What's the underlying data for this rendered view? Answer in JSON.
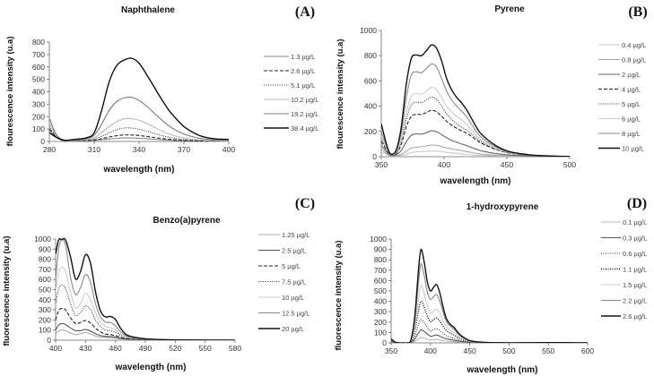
{
  "chart_data": [
    {
      "type": "line",
      "panel_label": "(A)",
      "title": "Naphthalene",
      "xlabel": "wavelength (nm)",
      "ylabel": "flourescence intensity (u.a)",
      "xlim": [
        280,
        400
      ],
      "ylim": [
        0,
        800
      ],
      "xticks": [
        280,
        310,
        340,
        370,
        400
      ],
      "yticks": [
        0,
        100,
        200,
        300,
        400,
        500,
        600,
        700,
        800
      ],
      "grid": false,
      "legend_position": "right",
      "x": [
        280,
        285,
        290,
        295,
        300,
        305,
        310,
        315,
        320,
        325,
        330,
        335,
        340,
        345,
        350,
        355,
        360,
        365,
        370,
        375,
        380,
        385,
        390,
        395,
        400
      ],
      "series": [
        {
          "name": "1.3 µg/L",
          "style": "solid",
          "color": "#888888",
          "values": [
            90,
            30,
            5,
            2,
            3,
            5,
            8,
            14,
            20,
            25,
            28,
            28,
            26,
            22,
            18,
            14,
            10,
            7,
            5,
            3,
            2,
            2,
            1,
            1,
            1
          ]
        },
        {
          "name": "2.6 µg/L",
          "style": "dashed",
          "color": "#222222",
          "values": [
            100,
            32,
            6,
            3,
            4,
            7,
            12,
            22,
            35,
            46,
            52,
            52,
            48,
            40,
            32,
            24,
            17,
            12,
            8,
            6,
            4,
            3,
            2,
            2,
            2
          ]
        },
        {
          "name": "5.1 µg/L",
          "style": "dotted",
          "color": "#333333",
          "values": [
            120,
            35,
            7,
            4,
            6,
            10,
            20,
            42,
            70,
            95,
            108,
            108,
            98,
            82,
            65,
            48,
            34,
            24,
            16,
            11,
            8,
            6,
            4,
            3,
            3
          ]
        },
        {
          "name": "10.2 µg/L",
          "style": "solid",
          "color": "#bbbbbb",
          "values": [
            150,
            40,
            8,
            5,
            8,
            14,
            30,
            70,
            120,
            160,
            182,
            183,
            170,
            145,
            115,
            85,
            60,
            42,
            28,
            19,
            13,
            9,
            7,
            5,
            4
          ]
        },
        {
          "name": "19.2 µg/L",
          "style": "solid",
          "color": "#777777",
          "values": [
            185,
            50,
            10,
            8,
            12,
            22,
            50,
            140,
            250,
            320,
            350,
            355,
            330,
            285,
            230,
            175,
            125,
            88,
            60,
            40,
            27,
            19,
            14,
            11,
            10
          ]
        },
        {
          "name": "38.4 µg/L",
          "style": "solid",
          "color": "#111111",
          "values": [
            70,
            30,
            10,
            14,
            20,
            30,
            70,
            250,
            480,
            610,
            655,
            670,
            630,
            540,
            440,
            340,
            250,
            180,
            120,
            80,
            50,
            32,
            22,
            18,
            16
          ]
        }
      ]
    },
    {
      "type": "line",
      "panel_label": "(B)",
      "title": "Pyrene",
      "xlabel": "wavelength (nm)",
      "ylabel": "flourescence intensity (u.a)",
      "xlim": [
        350,
        500
      ],
      "ylim": [
        0,
        1000
      ],
      "xticks": [
        350,
        400,
        450,
        500
      ],
      "yticks": [
        0,
        200,
        400,
        600,
        800,
        1000
      ],
      "grid": false,
      "legend_position": "right",
      "x": [
        350,
        355,
        358,
        362,
        366,
        370,
        374,
        378,
        382,
        386,
        390,
        394,
        398,
        402,
        406,
        410,
        414,
        418,
        422,
        426,
        430,
        440,
        450,
        460,
        470,
        480,
        490,
        500
      ],
      "series": [
        {
          "name": "0.4 µg/L",
          "style": "solid",
          "color": "#c8c8c8",
          "values": [
            40,
            15,
            5,
            5,
            10,
            20,
            32,
            38,
            40,
            42,
            44,
            43,
            40,
            35,
            30,
            26,
            22,
            18,
            15,
            12,
            10,
            6,
            4,
            3,
            2,
            1,
            1,
            0
          ]
        },
        {
          "name": "0.8 µg/L",
          "style": "solid",
          "color": "#aaaaaa",
          "values": [
            60,
            20,
            8,
            8,
            20,
            45,
            68,
            75,
            78,
            85,
            92,
            90,
            80,
            70,
            62,
            55,
            48,
            40,
            32,
            26,
            20,
            12,
            8,
            5,
            3,
            2,
            1,
            0
          ]
        },
        {
          "name": "2 µg/L",
          "style": "solid",
          "color": "#666666",
          "values": [
            90,
            30,
            10,
            15,
            50,
            120,
            170,
            180,
            178,
            190,
            205,
            198,
            175,
            150,
            130,
            115,
            100,
            88,
            72,
            58,
            45,
            26,
            15,
            9,
            5,
            3,
            2,
            1
          ]
        },
        {
          "name": "4 µg/L",
          "style": "dashed",
          "color": "#222222",
          "values": [
            120,
            40,
            12,
            25,
            100,
            240,
            320,
            335,
            335,
            350,
            368,
            355,
            320,
            280,
            250,
            225,
            205,
            185,
            160,
            130,
            105,
            62,
            32,
            18,
            10,
            5,
            3,
            2
          ]
        },
        {
          "name": "5 µg/L",
          "style": "dotted",
          "color": "#333333",
          "values": [
            140,
            45,
            14,
            30,
            120,
            300,
            410,
            430,
            428,
            450,
            472,
            455,
            400,
            340,
            295,
            260,
            235,
            210,
            180,
            145,
            115,
            65,
            33,
            18,
            10,
            5,
            3,
            2
          ]
        },
        {
          "name": "6 µg/L",
          "style": "solid",
          "color": "#cccccc",
          "values": [
            160,
            50,
            15,
            35,
            140,
            350,
            480,
            500,
            495,
            520,
            550,
            530,
            470,
            400,
            355,
            320,
            290,
            255,
            210,
            165,
            128,
            70,
            36,
            20,
            11,
            6,
            3,
            2
          ]
        },
        {
          "name": "8 µg/L",
          "style": "solid",
          "color": "#888888",
          "values": [
            200,
            60,
            18,
            45,
            190,
            470,
            650,
            672,
            665,
            700,
            735,
            710,
            620,
            520,
            450,
            400,
            360,
            315,
            255,
            195,
            150,
            82,
            40,
            22,
            12,
            6,
            3,
            2
          ]
        },
        {
          "name": "10 µg/L",
          "style": "solid",
          "color": "#111111",
          "values": [
            260,
            70,
            20,
            55,
            240,
            580,
            780,
            805,
            800,
            840,
            885,
            860,
            760,
            620,
            530,
            470,
            425,
            370,
            300,
            230,
            175,
            95,
            46,
            25,
            13,
            7,
            4,
            2
          ]
        }
      ]
    },
    {
      "type": "line",
      "panel_label": "(C)",
      "title": "Benzo(a)pyrene",
      "xlabel": "wavelength (nm)",
      "ylabel": "fluorescence intensity (u.a)",
      "xlim": [
        400,
        580
      ],
      "ylim": [
        0,
        1000
      ],
      "xticks": [
        400,
        430,
        460,
        490,
        520,
        550,
        580
      ],
      "yticks": [
        0,
        100,
        200,
        300,
        400,
        500,
        600,
        700,
        800,
        900,
        1000
      ],
      "grid": false,
      "legend_position": "right",
      "x": [
        400,
        403,
        406,
        410,
        415,
        420,
        425,
        430,
        435,
        440,
        445,
        450,
        455,
        460,
        465,
        470,
        475,
        480,
        490,
        500,
        510,
        520,
        550,
        580
      ],
      "series": [
        {
          "name": "1.25 µg/L",
          "style": "solid",
          "color": "#aaaaaa",
          "values": [
            60,
            90,
            100,
            95,
            70,
            55,
            65,
            75,
            62,
            42,
            30,
            26,
            25,
            20,
            14,
            9,
            6,
            5,
            3,
            2,
            1,
            1,
            0,
            0
          ]
        },
        {
          "name": "2.5 µg/L",
          "style": "solid",
          "color": "#555555",
          "values": [
            100,
            150,
            165,
            155,
            120,
            95,
            95,
            105,
            90,
            65,
            45,
            38,
            36,
            30,
            20,
            13,
            9,
            7,
            4,
            3,
            2,
            1,
            0,
            0
          ]
        },
        {
          "name": "5 µg/L",
          "style": "dashed",
          "color": "#222222",
          "values": [
            200,
            290,
            315,
            300,
            220,
            165,
            175,
            195,
            170,
            120,
            82,
            60,
            55,
            45,
            30,
            19,
            13,
            10,
            6,
            4,
            3,
            2,
            1,
            0
          ]
        },
        {
          "name": "7.5 µg/L",
          "style": "dotted",
          "color": "#333333",
          "values": [
            360,
            500,
            545,
            510,
            360,
            245,
            275,
            340,
            300,
            200,
            135,
            100,
            95,
            78,
            50,
            30,
            20,
            14,
            8,
            5,
            3,
            2,
            1,
            0
          ]
        },
        {
          "name": "10 µg/L",
          "style": "solid",
          "color": "#cccccc",
          "values": [
            480,
            670,
            720,
            680,
            470,
            320,
            365,
            465,
            400,
            270,
            180,
            135,
            125,
            100,
            62,
            36,
            24,
            17,
            10,
            6,
            4,
            2,
            1,
            0
          ]
        },
        {
          "name": "12.5 µg/L",
          "style": "solid",
          "color": "#888888",
          "values": [
            600,
            900,
            990,
            940,
            620,
            450,
            520,
            650,
            570,
            360,
            230,
            180,
            175,
            140,
            85,
            48,
            30,
            21,
            12,
            7,
            4,
            3,
            1,
            0
          ]
        },
        {
          "name": "20 µg/L",
          "style": "solid",
          "color": "#111111",
          "values": [
            850,
            990,
            995,
            990,
            820,
            605,
            680,
            845,
            760,
            480,
            290,
            230,
            235,
            205,
            120,
            62,
            38,
            27,
            14,
            8,
            5,
            3,
            1,
            0
          ]
        }
      ]
    },
    {
      "type": "line",
      "panel_label": "(D)",
      "title": "1-hydroxypyrene",
      "xlabel": "wavelength (nm)",
      "ylabel": "fluorescence intensity (u.a)",
      "xlim": [
        350,
        600
      ],
      "ylim": [
        0,
        1000
      ],
      "xticks": [
        350,
        400,
        450,
        500,
        550,
        600
      ],
      "yticks": [
        0,
        100,
        200,
        300,
        400,
        500,
        600,
        700,
        800,
        900,
        1000
      ],
      "grid": false,
      "legend_position": "right",
      "x": [
        350,
        355,
        360,
        365,
        370,
        375,
        380,
        385,
        388,
        392,
        396,
        400,
        404,
        408,
        412,
        416,
        420,
        425,
        430,
        435,
        440,
        445,
        450,
        460,
        470,
        480,
        500,
        550,
        600
      ],
      "series": [
        {
          "name": "0.1 µg/L",
          "style": "solid",
          "color": "#bbbbbb",
          "values": [
            10,
            2,
            0,
            0,
            0,
            2,
            15,
            40,
            50,
            45,
            35,
            28,
            30,
            32,
            28,
            22,
            18,
            14,
            11,
            8,
            6,
            4,
            3,
            2,
            1,
            1,
            0,
            0,
            0
          ]
        },
        {
          "name": "0.3 µg/L",
          "style": "solid",
          "color": "#555555",
          "values": [
            15,
            3,
            0,
            0,
            0,
            5,
            35,
            100,
            125,
            110,
            85,
            65,
            70,
            75,
            65,
            50,
            40,
            32,
            25,
            18,
            12,
            8,
            5,
            3,
            2,
            1,
            0,
            0,
            0
          ]
        },
        {
          "name": "0.6 µg/L",
          "style": "dotted",
          "color": "#333333",
          "values": [
            20,
            4,
            0,
            0,
            0,
            8,
            60,
            180,
            225,
            195,
            150,
            115,
            125,
            135,
            118,
            90,
            70,
            55,
            45,
            32,
            22,
            14,
            8,
            4,
            2,
            1,
            0,
            0,
            0
          ]
        },
        {
          "name": "1.1 µg/L",
          "style": "dotted",
          "color": "#111111",
          "values": [
            25,
            5,
            0,
            0,
            0,
            12,
            110,
            320,
            400,
            345,
            260,
            205,
            225,
            240,
            210,
            160,
            120,
            95,
            75,
            52,
            35,
            22,
            12,
            5,
            3,
            1,
            0,
            0,
            0
          ]
        },
        {
          "name": "1.5 µg/L",
          "style": "solid",
          "color": "#cccccc",
          "values": [
            30,
            6,
            0,
            0,
            0,
            15,
            150,
            440,
            555,
            475,
            360,
            285,
            305,
            325,
            285,
            215,
            160,
            125,
            100,
            68,
            45,
            28,
            15,
            7,
            3,
            2,
            1,
            0,
            0
          ]
        },
        {
          "name": "2.2 µg/L",
          "style": "solid",
          "color": "#888888",
          "values": [
            35,
            7,
            0,
            0,
            0,
            20,
            210,
            600,
            760,
            650,
            490,
            420,
            445,
            465,
            400,
            300,
            210,
            160,
            130,
            88,
            58,
            36,
            20,
            9,
            4,
            2,
            1,
            1,
            0
          ]
        },
        {
          "name": "2.6 µg/L",
          "style": "solid",
          "color": "#111111",
          "values": [
            40,
            8,
            0,
            0,
            0,
            25,
            250,
            720,
            900,
            780,
            590,
            500,
            535,
            560,
            480,
            350,
            240,
            180,
            150,
            100,
            65,
            40,
            22,
            10,
            5,
            2,
            1,
            3,
            0
          ]
        }
      ]
    }
  ]
}
